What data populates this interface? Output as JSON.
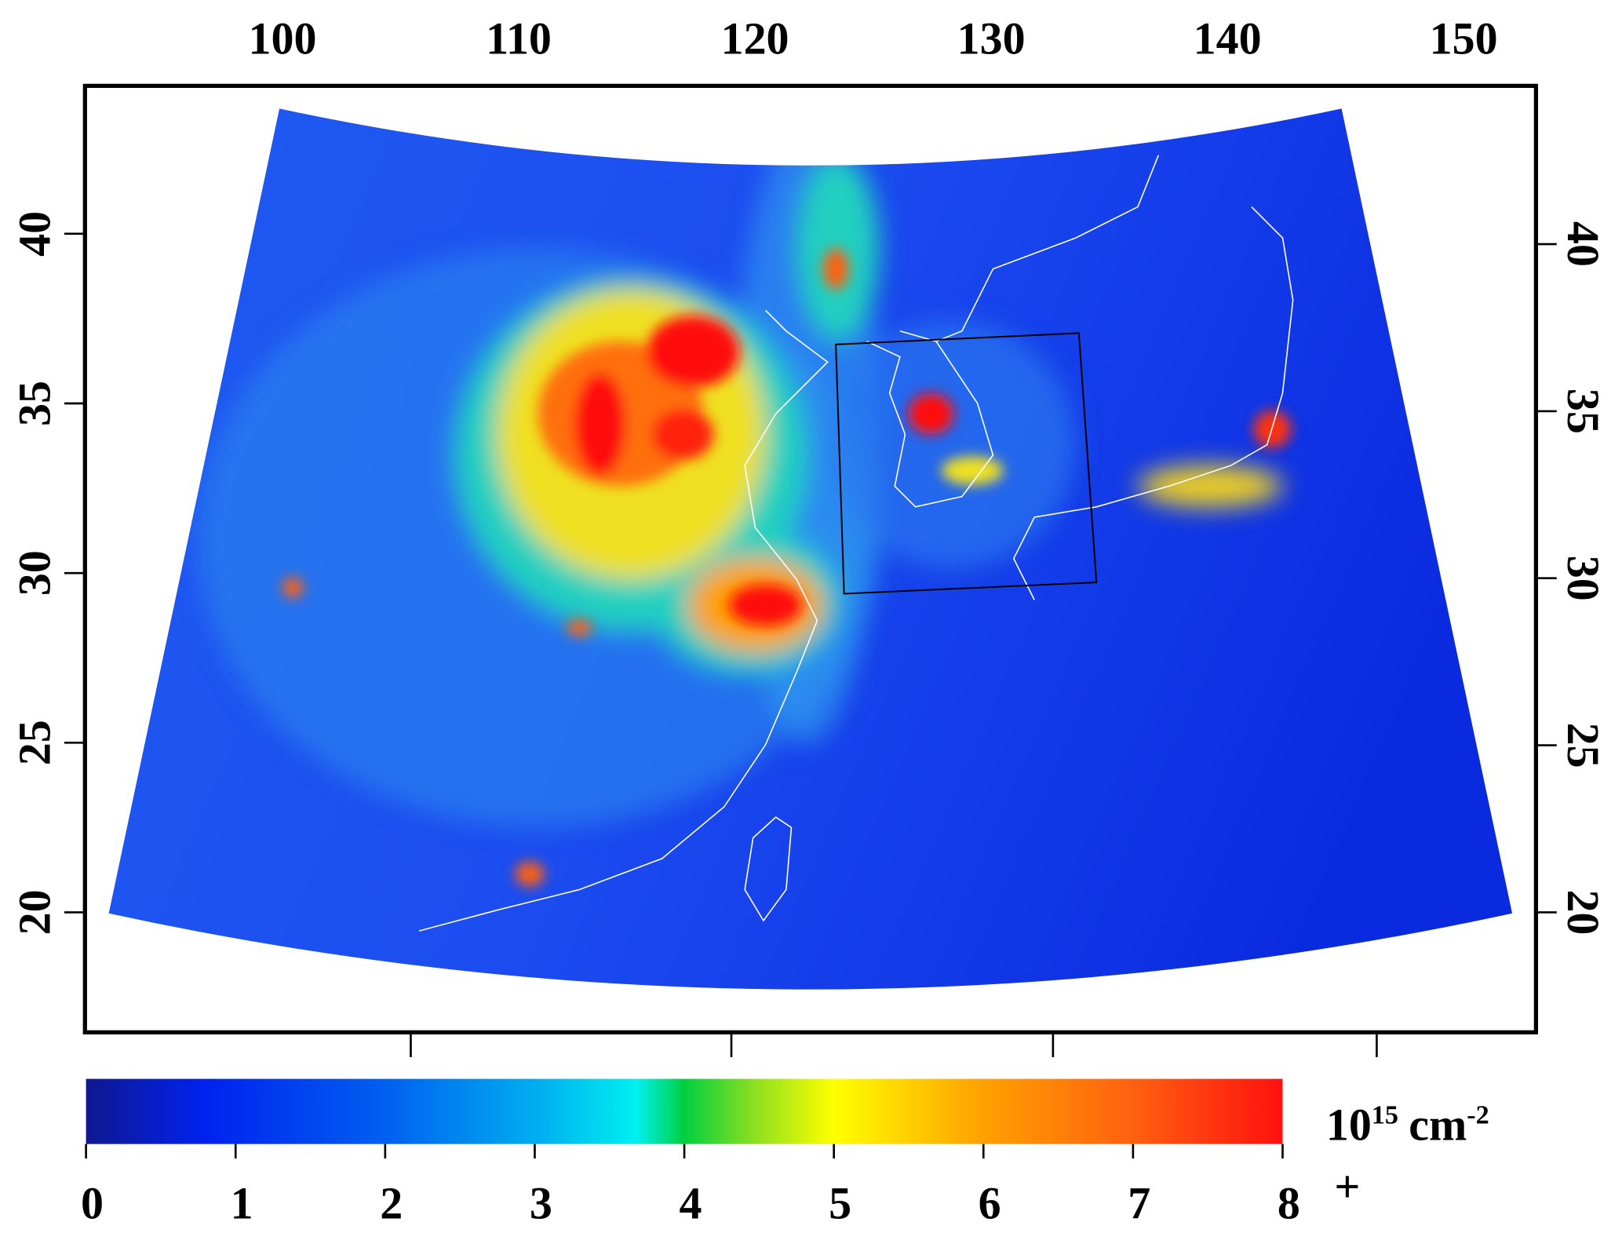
{
  "map": {
    "longitude_labels": [
      100,
      110,
      120,
      130,
      140,
      150
    ],
    "latitude_labels_left": [
      20,
      25,
      30,
      35,
      40
    ],
    "latitude_labels_right": [
      20,
      25,
      30,
      35,
      40
    ]
  },
  "colorbar": {
    "range": [
      0,
      8
    ],
    "ticks": [
      0,
      1,
      2,
      3,
      4,
      5,
      6,
      7,
      8
    ],
    "overflow_mark": "+",
    "unit": {
      "base": "10",
      "exponent": "15",
      "unit": "cm",
      "unit_exponent": "-2"
    }
  }
}
